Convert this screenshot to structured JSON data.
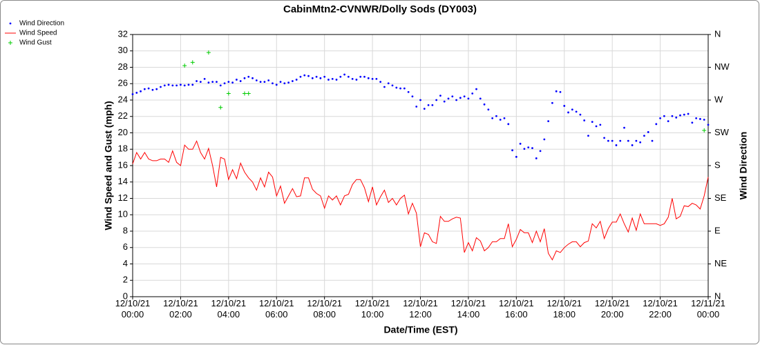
{
  "chart_data": {
    "type": "line",
    "title": "CabinMtn2-CVNWR/Dolly Sods (DY003)",
    "xlabel": "Date/Time (EST)",
    "ylabel": "Wind Speed and Gust (mph)",
    "y2label": "Wind Direction",
    "xlim": [
      "12/10/21 00:00",
      "12/11/21 00:00"
    ],
    "xticks": [
      "12/10/21 00:00",
      "12/10/21 02:00",
      "12/10/21 04:00",
      "12/10/21 06:00",
      "12/10/21 08:00",
      "12/10/21 10:00",
      "12/10/21 12:00",
      "12/10/21 14:00",
      "12/10/21 16:00",
      "12/10/21 18:00",
      "12/10/21 20:00",
      "12/10/21 22:00",
      "12/11/21 00:00"
    ],
    "ylim": [
      0,
      32
    ],
    "yticks": [
      0,
      2,
      4,
      6,
      8,
      10,
      12,
      14,
      16,
      18,
      20,
      22,
      24,
      26,
      28,
      30,
      32
    ],
    "y2lim": [
      0,
      360
    ],
    "y2ticks": [
      {
        "value": 0,
        "label": "N"
      },
      {
        "value": 45,
        "label": "NE"
      },
      {
        "value": 90,
        "label": "E"
      },
      {
        "value": 135,
        "label": "SE"
      },
      {
        "value": 180,
        "label": "S"
      },
      {
        "value": 225,
        "label": "SW"
      },
      {
        "value": 270,
        "label": "W"
      },
      {
        "value": 315,
        "label": "NW"
      },
      {
        "value": 360,
        "label": "N"
      }
    ],
    "grid": true,
    "legend": "top-left",
    "x": [
      "12/10/21 00:00",
      "12/10/21 00:10",
      "12/10/21 00:20",
      "12/10/21 00:30",
      "12/10/21 00:40",
      "12/10/21 00:50",
      "12/10/21 01:00",
      "12/10/21 01:10",
      "12/10/21 01:20",
      "12/10/21 01:30",
      "12/10/21 01:40",
      "12/10/21 01:50",
      "12/10/21 02:00",
      "12/10/21 02:10",
      "12/10/21 02:20",
      "12/10/21 02:30",
      "12/10/21 02:40",
      "12/10/21 02:50",
      "12/10/21 03:00",
      "12/10/21 03:10",
      "12/10/21 03:20",
      "12/10/21 03:30",
      "12/10/21 03:40",
      "12/10/21 03:50",
      "12/10/21 04:00",
      "12/10/21 04:10",
      "12/10/21 04:20",
      "12/10/21 04:30",
      "12/10/21 04:40",
      "12/10/21 04:50",
      "12/10/21 05:00",
      "12/10/21 05:10",
      "12/10/21 05:20",
      "12/10/21 05:30",
      "12/10/21 05:40",
      "12/10/21 05:50",
      "12/10/21 06:00",
      "12/10/21 06:10",
      "12/10/21 06:20",
      "12/10/21 06:30",
      "12/10/21 06:40",
      "12/10/21 06:50",
      "12/10/21 07:00",
      "12/10/21 07:10",
      "12/10/21 07:20",
      "12/10/21 07:30",
      "12/10/21 07:40",
      "12/10/21 07:50",
      "12/10/21 08:00",
      "12/10/21 08:10",
      "12/10/21 08:20",
      "12/10/21 08:30",
      "12/10/21 08:40",
      "12/10/21 08:50",
      "12/10/21 09:00",
      "12/10/21 09:10",
      "12/10/21 09:20",
      "12/10/21 09:30",
      "12/10/21 09:40",
      "12/10/21 09:50",
      "12/10/21 10:00",
      "12/10/21 10:10",
      "12/10/21 10:20",
      "12/10/21 10:30",
      "12/10/21 10:40",
      "12/10/21 10:50",
      "12/10/21 11:00",
      "12/10/21 11:10",
      "12/10/21 11:20",
      "12/10/21 11:30",
      "12/10/21 11:40",
      "12/10/21 11:50",
      "12/10/21 12:00",
      "12/10/21 12:10",
      "12/10/21 12:20",
      "12/10/21 12:30",
      "12/10/21 12:40",
      "12/10/21 12:50",
      "12/10/21 13:00",
      "12/10/21 13:10",
      "12/10/21 13:20",
      "12/10/21 13:30",
      "12/10/21 13:40",
      "12/10/21 13:50",
      "12/10/21 14:00",
      "12/10/21 14:10",
      "12/10/21 14:20",
      "12/10/21 14:30",
      "12/10/21 14:40",
      "12/10/21 14:50",
      "12/10/21 15:00",
      "12/10/21 15:10",
      "12/10/21 15:20",
      "12/10/21 15:30",
      "12/10/21 15:40",
      "12/10/21 15:50",
      "12/10/21 16:00",
      "12/10/21 16:10",
      "12/10/21 16:20",
      "12/10/21 16:30",
      "12/10/21 16:40",
      "12/10/21 16:50",
      "12/10/21 17:00",
      "12/10/21 17:10",
      "12/10/21 17:20",
      "12/10/21 17:30",
      "12/10/21 17:40",
      "12/10/21 17:50",
      "12/10/21 18:00",
      "12/10/21 18:10",
      "12/10/21 18:20",
      "12/10/21 18:30",
      "12/10/21 18:40",
      "12/10/21 18:50",
      "12/10/21 19:00",
      "12/10/21 19:10",
      "12/10/21 19:20",
      "12/10/21 19:30",
      "12/10/21 19:40",
      "12/10/21 19:50",
      "12/10/21 20:00",
      "12/10/21 20:10",
      "12/10/21 20:20",
      "12/10/21 20:30",
      "12/10/21 20:40",
      "12/10/21 20:50",
      "12/10/21 21:00",
      "12/10/21 21:10",
      "12/10/21 21:20",
      "12/10/21 21:30",
      "12/10/21 21:40",
      "12/10/21 21:50",
      "12/10/21 22:00",
      "12/10/21 22:10",
      "12/10/21 22:20",
      "12/10/21 22:30",
      "12/10/21 22:40",
      "12/10/21 22:50",
      "12/10/21 23:00",
      "12/10/21 23:10",
      "12/10/21 23:20",
      "12/10/21 23:30",
      "12/10/21 23:40",
      "12/10/21 23:50",
      "12/11/21 00:00"
    ],
    "series": [
      {
        "name": "Wind Direction",
        "color": "#0000ff",
        "marker": "dot",
        "axis": "y2",
        "values": [
          278,
          280,
          282,
          285,
          286,
          284,
          285,
          288,
          290,
          291,
          290,
          290,
          291,
          290,
          291,
          291,
          296,
          295,
          299,
          294,
          295,
          295,
          290,
          293,
          295,
          294,
          298,
          296,
          300,
          302,
          300,
          297,
          295,
          295,
          297,
          293,
          291,
          295,
          293,
          294,
          296,
          298,
          302,
          304,
          303,
          300,
          302,
          300,
          302,
          298,
          299,
          298,
          302,
          305,
          302,
          299,
          298,
          302,
          302,
          300,
          299,
          299,
          295,
          288,
          293,
          290,
          287,
          286,
          286,
          281,
          275,
          261,
          270,
          258,
          263,
          263,
          270,
          276,
          268,
          272,
          275,
          270,
          273,
          275,
          272,
          279,
          285,
          272,
          264,
          257,
          245,
          248,
          243,
          245,
          237,
          201,
          192,
          210,
          203,
          205,
          204,
          190,
          200,
          216,
          241,
          266,
          282,
          281,
          262,
          253,
          257,
          254,
          250,
          242,
          221,
          240,
          234,
          236,
          218,
          214,
          214,
          208,
          214,
          232,
          214,
          208,
          214,
          212,
          221,
          226,
          214,
          237,
          245,
          248,
          241,
          248,
          246,
          249,
          250,
          251,
          239,
          245,
          244,
          243,
          236
        ]
      },
      {
        "name": "Wind Speed",
        "color": "#ff0000",
        "marker": "line",
        "values": [
          16.2,
          17.6,
          16.8,
          17.6,
          16.8,
          16.6,
          16.6,
          16.8,
          16.8,
          16.4,
          17.8,
          16.4,
          16.0,
          18.5,
          18.0,
          18.0,
          19.0,
          17.6,
          16.8,
          18.1,
          16.0,
          13.4,
          17.0,
          16.8,
          14.3,
          15.5,
          14.4,
          16.3,
          15.2,
          14.5,
          14.0,
          13.0,
          14.5,
          13.4,
          15.2,
          14.6,
          12.3,
          13.5,
          11.4,
          12.3,
          13.2,
          12.2,
          12.3,
          14.5,
          14.5,
          13.1,
          12.6,
          12.3,
          10.8,
          12.3,
          11.8,
          12.3,
          11.2,
          12.3,
          12.5,
          13.7,
          14.3,
          14.3,
          13.3,
          11.6,
          13.4,
          11.2,
          12.2,
          13.0,
          11.5,
          12.0,
          11.2,
          12.0,
          12.4,
          10.1,
          11.4,
          10.2,
          6.1,
          7.8,
          7.6,
          6.7,
          6.5,
          9.8,
          9.2,
          9.2,
          9.5,
          9.7,
          9.6,
          5.4,
          6.6,
          5.6,
          7.2,
          6.8,
          5.6,
          6.0,
          6.7,
          6.7,
          7.1,
          7.1,
          8.9,
          6.1,
          7.0,
          8.2,
          7.8,
          7.8,
          6.6,
          8.0,
          6.7,
          8.3,
          5.3,
          4.5,
          5.6,
          5.4,
          6.0,
          6.4,
          6.7,
          6.7,
          6.1,
          6.6,
          6.8,
          8.9,
          8.4,
          9.2,
          7.1,
          8.3,
          9.1,
          9.1,
          10.1,
          8.9,
          7.9,
          9.6,
          8.1,
          10.1,
          8.9,
          8.9,
          8.9,
          8.9,
          8.7,
          8.9,
          9.7,
          12.0,
          9.5,
          9.8,
          11.1,
          11.0,
          11.4,
          11.2,
          10.7,
          12.3,
          14.6
        ]
      },
      {
        "name": "Wind Gust",
        "color": "#00cc00",
        "marker": "plus",
        "x": [
          "12/10/21 02:10",
          "12/10/21 02:30",
          "12/10/21 03:10",
          "12/10/21 03:40",
          "12/10/21 04:00",
          "12/10/21 04:40",
          "12/10/21 04:50",
          "12/10/21 23:50"
        ],
        "values": [
          28.2,
          28.6,
          29.8,
          23.1,
          24.8,
          24.8,
          24.8,
          20.3
        ]
      }
    ]
  }
}
